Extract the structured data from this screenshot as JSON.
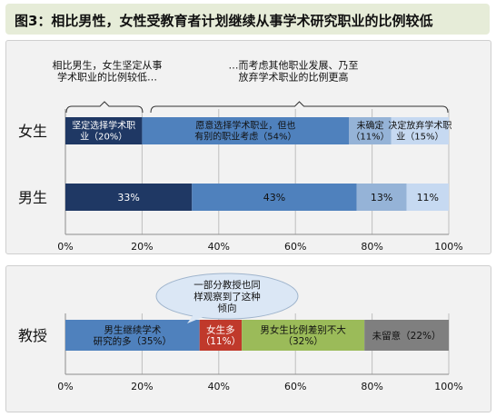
{
  "header": {
    "title": "图3：相比男性，女性受教育者计划继续从事学术研究职业的比例较低"
  },
  "chart_data": [
    {
      "type": "bar",
      "orientation": "horizontal",
      "stacked": true,
      "categories": [
        "女生",
        "男生"
      ],
      "series": [
        {
          "name": "坚定选择学术职业",
          "values": [
            20,
            33
          ],
          "color": "#1f3864"
        },
        {
          "name": "愿意选择学术职业，但也有别的职业考虑",
          "values": [
            54,
            43
          ],
          "color": "#4f81bd"
        },
        {
          "name": "未确定",
          "values": [
            11,
            13
          ],
          "color": "#95b3d7"
        },
        {
          "name": "决定放弃学术职业",
          "values": [
            15,
            11
          ],
          "color": "#c6d9f1"
        }
      ],
      "segment_labels": [
        [
          "坚定选择学术职\n业（20%）",
          "愿意选择学术职业，但也\n有别的职业考虑（54%）",
          "未确定\n（11%）",
          "决定放弃学术职\n业（15%）"
        ],
        [
          "33%",
          "43%",
          "13%",
          "11%"
        ]
      ],
      "xlim": [
        0,
        100
      ],
      "xticks": [
        "0%",
        "20%",
        "40%",
        "60%",
        "80%",
        "100%"
      ],
      "annotations": [
        "相比男生，女生坚定从事\n学术职业的比例较低…",
        "…而考虑其他职业发展、乃至\n放弃学术职业的比例更高"
      ]
    },
    {
      "type": "bar",
      "orientation": "horizontal",
      "stacked": true,
      "categories": [
        "教授"
      ],
      "series": [
        {
          "name": "男生继续学术研究的多",
          "values": [
            35
          ],
          "color": "#4f81bd"
        },
        {
          "name": "女生多",
          "values": [
            11
          ],
          "color": "#c0392b"
        },
        {
          "name": "男女生比例差别不大",
          "values": [
            32
          ],
          "color": "#9bbb59"
        },
        {
          "name": "未留意",
          "values": [
            22
          ],
          "color": "#7f7f7f"
        }
      ],
      "segment_labels": [
        [
          "男生继续学术\n研究的多（35%）",
          "女生多\n（11%）",
          "男女生比例差别不大\n（32%）",
          "未留意（22%）"
        ]
      ],
      "xlim": [
        0,
        100
      ],
      "xticks": [
        "0%",
        "20%",
        "40%",
        "60%",
        "80%",
        "100%"
      ],
      "callout": "一部分教授也同\n样观察到了这种\n倾向"
    }
  ]
}
